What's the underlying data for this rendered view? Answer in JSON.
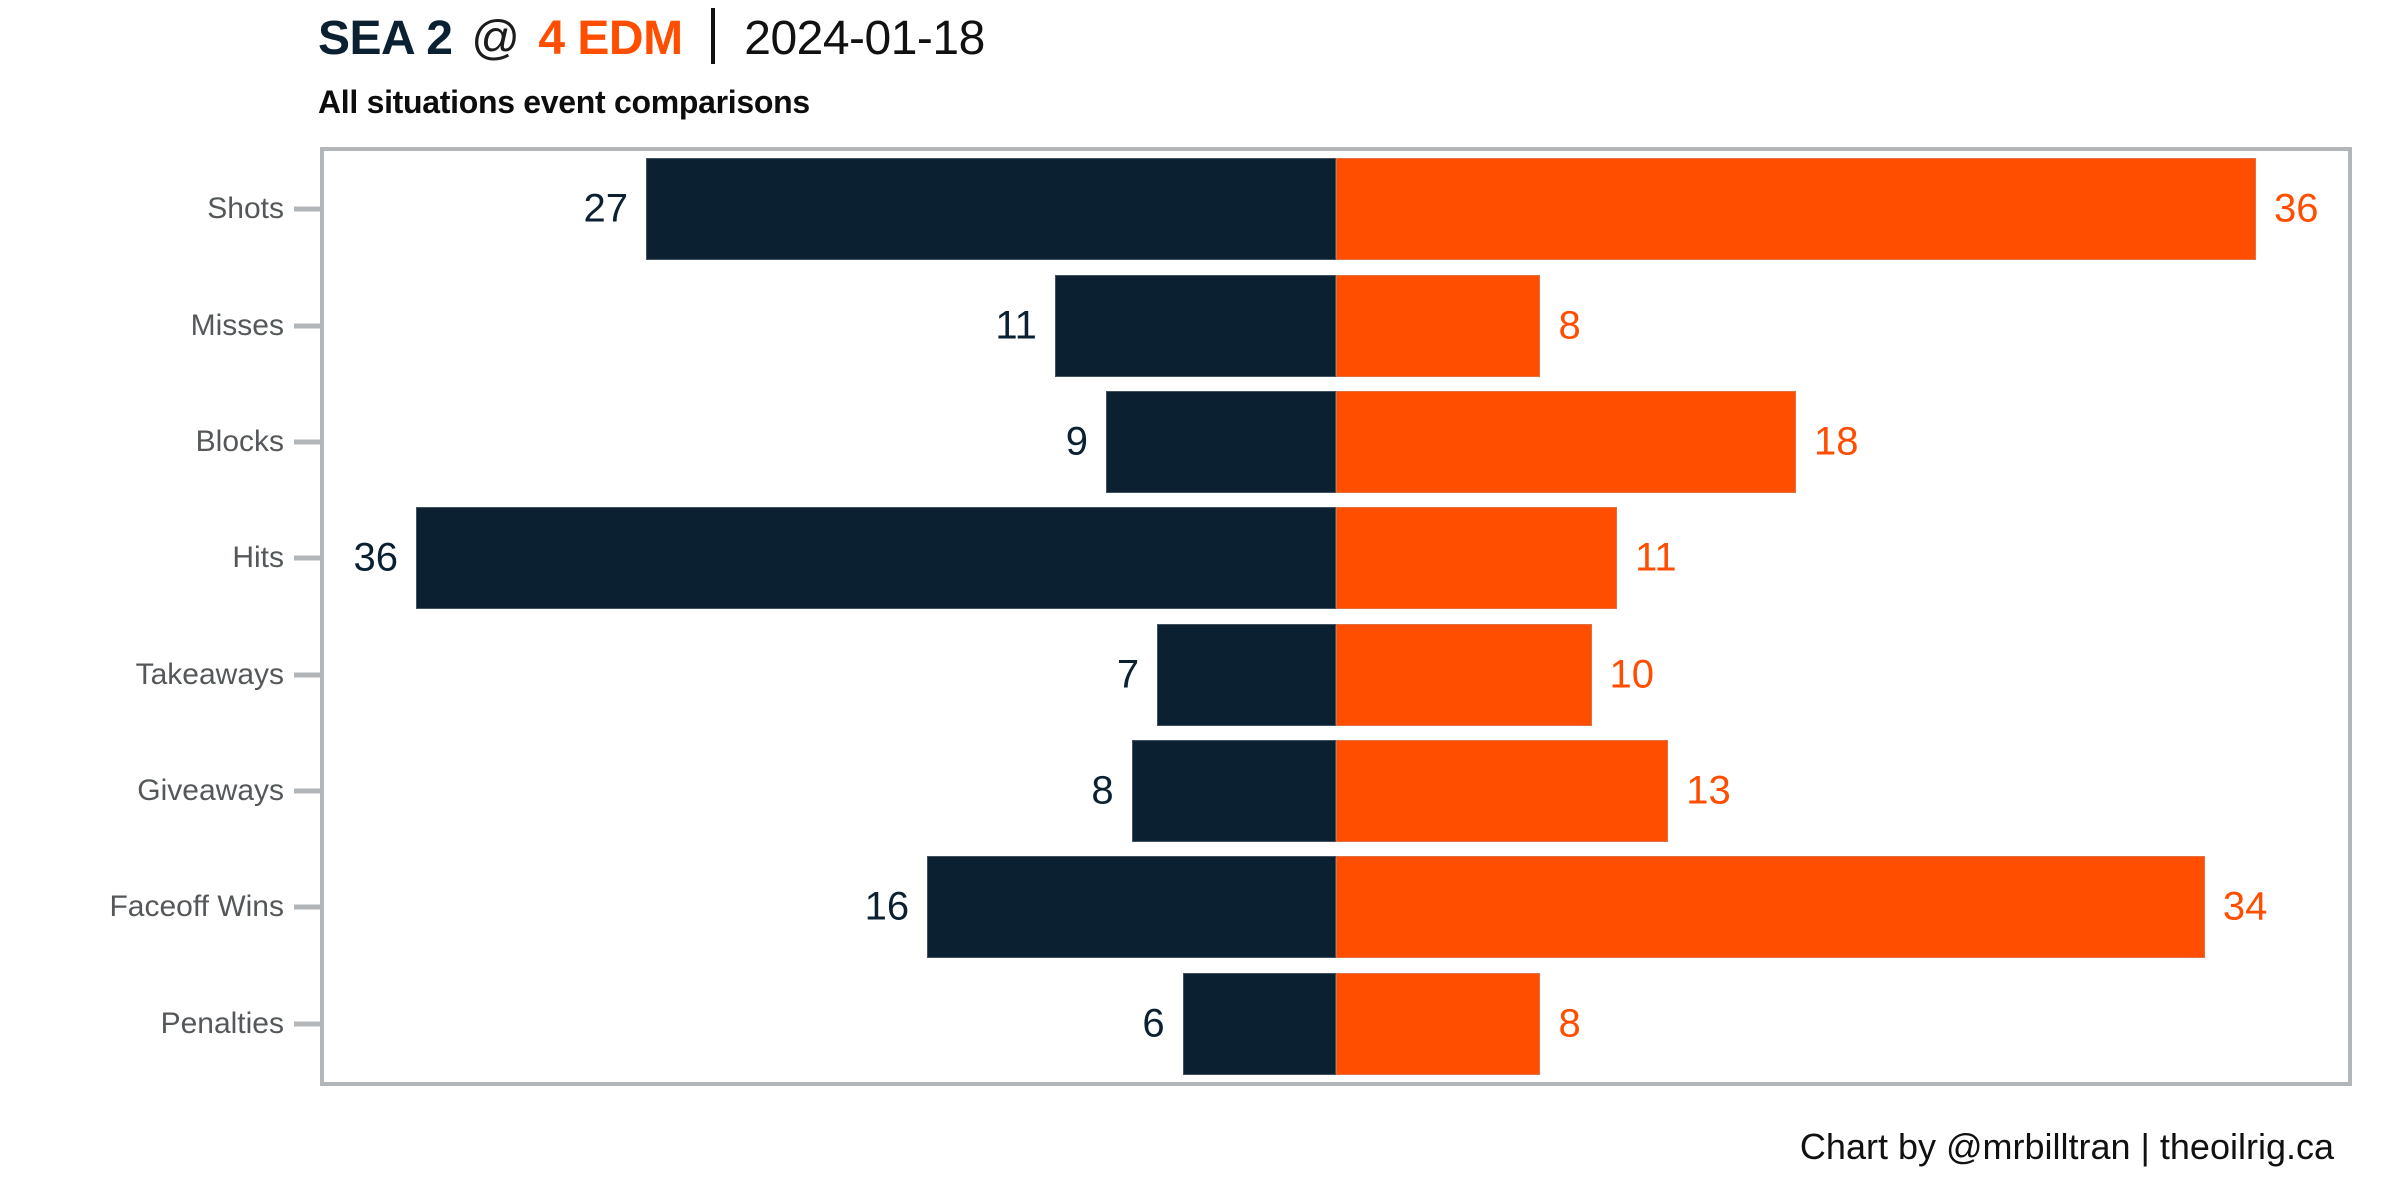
{
  "title": {
    "away": "SEA 2",
    "at": "@",
    "home": "4 EDM",
    "divider": "|",
    "date": "2024-01-18"
  },
  "subtitle": "All situations event comparisons",
  "footer": {
    "text": "Chart by @mrbilltran | theoilrig.ca"
  },
  "colors": {
    "away": "#0b2132",
    "home": "#ff4e00",
    "axis": "#b3b6b8",
    "category_label": "#55585a",
    "text": "#111111"
  },
  "chart_data": {
    "type": "bar",
    "subtype": "diverging-horizontal",
    "title": "SEA 2 @ 4 EDM | 2024-01-18",
    "subtitle": "All situations event comparisons",
    "categories": [
      "Shots",
      "Misses",
      "Blocks",
      "Hits",
      "Takeaways",
      "Giveaways",
      "Faceoff Wins",
      "Penalties"
    ],
    "series": [
      {
        "name": "SEA",
        "side": "left",
        "color": "#0b2132",
        "values": [
          27,
          11,
          9,
          36,
          7,
          8,
          16,
          6
        ]
      },
      {
        "name": "EDM",
        "side": "right",
        "color": "#ff4e00",
        "values": [
          36,
          8,
          18,
          11,
          10,
          13,
          34,
          8
        ]
      }
    ],
    "axis_limit": 39.6,
    "xlabel": "",
    "ylabel": "",
    "grid": false,
    "legend": "none",
    "value_labels": "at-bar-ends"
  }
}
